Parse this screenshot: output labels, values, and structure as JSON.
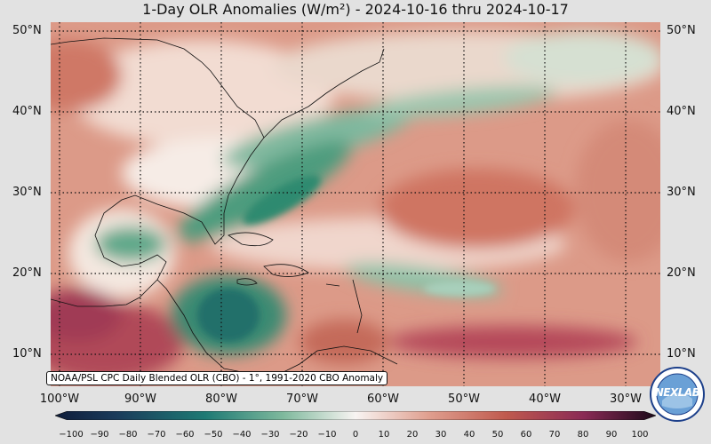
{
  "title": "1-Day OLR Anomalies (W/m²) - 2024-10-16 thru 2024-10-17",
  "lat_labels": [
    "50°N",
    "40°N",
    "30°N",
    "20°N",
    "10°N"
  ],
  "lon_labels": [
    "100°W",
    "90°W",
    "80°W",
    "70°W",
    "60°W",
    "50°W",
    "40°W",
    "30°W"
  ],
  "credit": "NOAA/PSL CPC Daily Blended OLR (CBO) - 1°, 1991-2020 CBO Anomaly",
  "colorbar_ticks": [
    "−100",
    "−90",
    "−80",
    "−70",
    "−60",
    "−50",
    "−40",
    "−30",
    "−20",
    "−10",
    "0",
    "10",
    "20",
    "30",
    "40",
    "50",
    "60",
    "70",
    "80",
    "90",
    "100"
  ],
  "logo_text": "NEXLAB",
  "colors": {
    "negative": "#2a8a6a",
    "neutral": "#f6ece6",
    "positive": "#c05a4e",
    "strong_positive": "#7a1a40"
  }
}
